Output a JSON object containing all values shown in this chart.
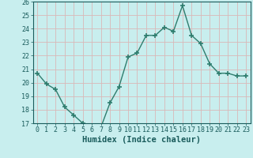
{
  "x": [
    0,
    1,
    2,
    3,
    4,
    5,
    6,
    7,
    8,
    9,
    10,
    11,
    12,
    13,
    14,
    15,
    16,
    17,
    18,
    19,
    20,
    21,
    22,
    23
  ],
  "y": [
    20.7,
    19.9,
    19.5,
    18.2,
    17.6,
    17.0,
    16.7,
    16.7,
    18.5,
    19.7,
    21.9,
    22.2,
    23.5,
    23.5,
    24.1,
    23.8,
    25.7,
    23.5,
    22.9,
    21.4,
    20.7,
    20.7,
    20.5,
    20.5
  ],
  "line_color": "#2e7d6e",
  "marker": "+",
  "marker_size": 4,
  "marker_lw": 1.2,
  "bg_color": "#c8eeee",
  "grid_color": "#d9b8b8",
  "xlabel": "Humidex (Indice chaleur)",
  "xlabel_color": "#1a5c5c",
  "tick_color": "#1a5c5c",
  "ylim": [
    17,
    26
  ],
  "xlim": [
    -0.5,
    23.5
  ],
  "yticks": [
    17,
    18,
    19,
    20,
    21,
    22,
    23,
    24,
    25,
    26
  ],
  "xticks": [
    0,
    1,
    2,
    3,
    4,
    5,
    6,
    7,
    8,
    9,
    10,
    11,
    12,
    13,
    14,
    15,
    16,
    17,
    18,
    19,
    20,
    21,
    22,
    23
  ],
  "font_size": 6,
  "xlabel_fontsize": 7.5,
  "line_width": 1.0
}
